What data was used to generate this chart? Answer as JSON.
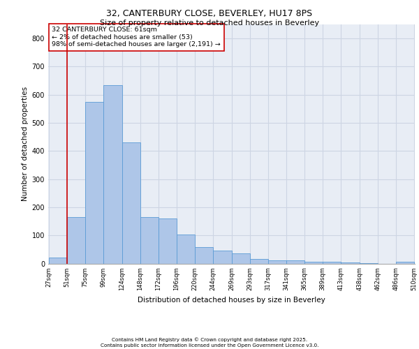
{
  "title_line1": "32, CANTERBURY CLOSE, BEVERLEY, HU17 8PS",
  "title_line2": "Size of property relative to detached houses in Beverley",
  "xlabel": "Distribution of detached houses by size in Beverley",
  "ylabel": "Number of detached properties",
  "bins": [
    27,
    51,
    75,
    99,
    124,
    148,
    172,
    196,
    220,
    244,
    269,
    293,
    317,
    341,
    365,
    389,
    413,
    438,
    462,
    486,
    510
  ],
  "bar_heights": [
    20,
    165,
    575,
    635,
    430,
    165,
    160,
    103,
    58,
    47,
    35,
    15,
    12,
    10,
    7,
    5,
    3,
    1,
    0,
    5
  ],
  "bar_color": "#aec6e8",
  "bar_edge_color": "#5b9bd5",
  "vline_color": "#cc0000",
  "vline_bin_index": 1,
  "annotation_text": "32 CANTERBURY CLOSE: 61sqm\n← 2% of detached houses are smaller (53)\n98% of semi-detached houses are larger (2,191) →",
  "annotation_box_color": "#cc0000",
  "ylim": [
    0,
    850
  ],
  "yticks": [
    0,
    100,
    200,
    300,
    400,
    500,
    600,
    700,
    800
  ],
  "grid_color": "#cdd5e3",
  "bg_color": "#e8edf5",
  "footnote": "Contains HM Land Registry data © Crown copyright and database right 2025.\nContains public sector information licensed under the Open Government Licence v3.0."
}
